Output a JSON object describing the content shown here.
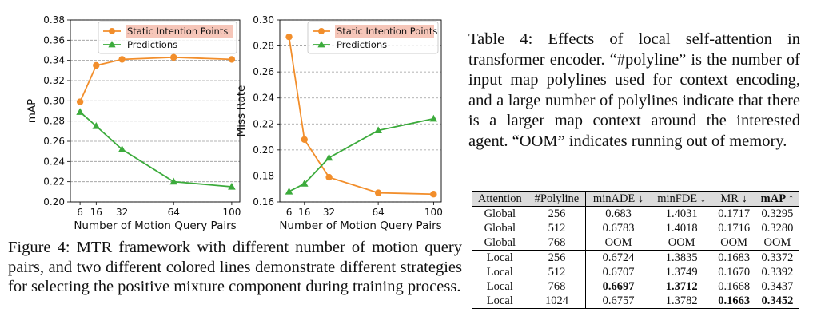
{
  "chart_data": [
    {
      "type": "line",
      "xlabel": "Number of Motion Query Pairs",
      "ylabel": "mAP",
      "x": [
        6,
        16,
        32,
        64,
        100
      ],
      "xticks": [
        "6",
        "16",
        "32",
        "64",
        "100"
      ],
      "xlim": [
        0,
        105
      ],
      "ylim": [
        0.2,
        0.38
      ],
      "yticks": [
        "0.20",
        "0.22",
        "0.24",
        "0.26",
        "0.28",
        "0.30",
        "0.32",
        "0.34",
        "0.36",
        "0.38"
      ],
      "grid": "horizontal dashed",
      "legend_position": "top-center",
      "series": [
        {
          "name": "Static Intention Points",
          "color": "#f28e2b",
          "marker": "circle",
          "values": [
            0.299,
            0.335,
            0.341,
            0.343,
            0.341
          ]
        },
        {
          "name": "Predictions",
          "color": "#3cab3c",
          "marker": "triangle",
          "values": [
            0.289,
            0.275,
            0.252,
            0.22,
            0.215
          ]
        }
      ]
    },
    {
      "type": "line",
      "xlabel": "Number of Motion Query Pairs",
      "ylabel": "Miss Rate",
      "x": [
        6,
        16,
        32,
        64,
        100
      ],
      "xticks": [
        "6",
        "16",
        "32",
        "64",
        "100"
      ],
      "xlim": [
        0,
        105
      ],
      "ylim": [
        0.16,
        0.3
      ],
      "yticks": [
        "0.16",
        "0.18",
        "0.20",
        "0.22",
        "0.24",
        "0.26",
        "0.28",
        "0.30"
      ],
      "grid": "horizontal dashed",
      "legend_position": "top-right",
      "series": [
        {
          "name": "Static Intention Points",
          "color": "#f28e2b",
          "marker": "circle",
          "values": [
            0.287,
            0.208,
            0.179,
            0.167,
            0.166
          ]
        },
        {
          "name": "Predictions",
          "color": "#3cab3c",
          "marker": "triangle",
          "values": [
            0.168,
            0.174,
            0.194,
            0.215,
            0.224
          ]
        }
      ]
    }
  ],
  "figure_caption": "Figure 4: MTR framework with different number of motion query pairs, and two different colored lines demonstrate different strategies for selecting the positive mixture component during training process.",
  "table_caption": "Table 4: Effects of local self-attention in transformer encoder. “#polyline” is the number of input map polylines used for context encoding, and a large number of polylines indicate that there is a larger map context around the interested agent. “OOM” indicates running out of memory.",
  "table": {
    "headers": [
      "Attention",
      "#Polyline",
      "minADE ↓",
      "minFDE ↓",
      "MR ↓",
      "mAP ↑"
    ],
    "rows": [
      [
        "Global",
        "256",
        "0.683",
        "1.4031",
        "0.1717",
        "0.3295"
      ],
      [
        "Global",
        "512",
        "0.6783",
        "1.4018",
        "0.1716",
        "0.3280"
      ],
      [
        "Global",
        "768",
        "OOM",
        "OOM",
        "OOM",
        "OOM"
      ],
      [
        "Local",
        "256",
        "0.6724",
        "1.3835",
        "0.1683",
        "0.3372"
      ],
      [
        "Local",
        "512",
        "0.6707",
        "1.3749",
        "0.1670",
        "0.3392"
      ],
      [
        "Local",
        "768",
        "0.6697",
        "1.3712",
        "0.1668",
        "0.3437"
      ],
      [
        "Local",
        "1024",
        "0.6757",
        "1.3782",
        "0.1663",
        "0.3452"
      ]
    ]
  }
}
